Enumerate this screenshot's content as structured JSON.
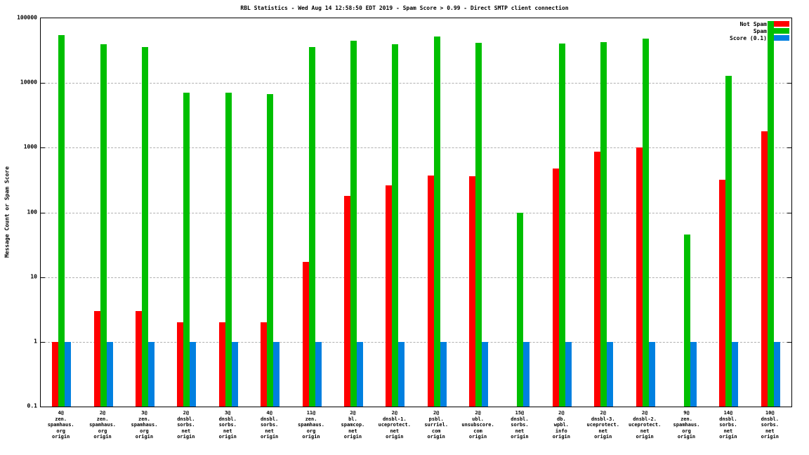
{
  "chart_data": {
    "type": "bar",
    "title": "RBL Statistics - Wed Aug 14 12:58:50 EDT 2019 - Spam Score > 0.99 - Direct SMTP client connection",
    "ylabel": "Message Count or Spam Score",
    "xlabel": "",
    "yscale": "log",
    "ylim": [
      0.1,
      100000
    ],
    "ytick_labels": [
      "100000",
      "10000",
      "1000",
      "100",
      "10",
      "1",
      "0.1"
    ],
    "grid": "dashed horizontal lines at each decade",
    "legend_position": "top-right-inside",
    "categories": [
      [
        "4@",
        "zen.",
        "spamhaus.",
        "org",
        "origin"
      ],
      [
        "2@",
        "zen.",
        "spamhaus.",
        "org",
        "origin"
      ],
      [
        "3@",
        "zen.",
        "spamhaus.",
        "org",
        "origin"
      ],
      [
        "2@",
        "dnsbl.",
        "sorbs.",
        "net",
        "origin"
      ],
      [
        "3@",
        "dnsbl.",
        "sorbs.",
        "net",
        "origin"
      ],
      [
        "4@",
        "dnsbl.",
        "sorbs.",
        "net",
        "origin"
      ],
      [
        "11@",
        "zen.",
        "spamhaus.",
        "org",
        "origin"
      ],
      [
        "2@",
        "bl.",
        "spamcop.",
        "net",
        "origin"
      ],
      [
        "2@",
        "dnsbl-1.",
        "uceprotect.",
        "net",
        "origin"
      ],
      [
        "2@",
        "psbl.",
        "surriel.",
        "com",
        "origin"
      ],
      [
        "2@",
        "ubl.",
        "unsubscore.",
        "com",
        "origin"
      ],
      [
        "15@",
        "dnsbl.",
        "sorbs.",
        "net",
        "origin"
      ],
      [
        "2@",
        "db.",
        "wpbl.",
        "info",
        "origin"
      ],
      [
        "2@",
        "dnsbl-3.",
        "uceprotect.",
        "net",
        "origin"
      ],
      [
        "2@",
        "dnsbl-2.",
        "uceprotect.",
        "net",
        "origin"
      ],
      [
        "9@",
        "zen.",
        "spamhaus.",
        "org",
        "origin"
      ],
      [
        "14@",
        "dnsbl.",
        "sorbs.",
        "net",
        "origin"
      ],
      [
        "10@",
        "dnsbl.",
        "sorbs.",
        "net",
        "origin"
      ]
    ],
    "series": [
      {
        "name": "Not Spam",
        "color": "#ff0000",
        "values": [
          1,
          3,
          3,
          2,
          2,
          2,
          17,
          180,
          260,
          370,
          360,
          null,
          480,
          870,
          1000,
          null,
          320,
          1800
        ]
      },
      {
        "name": "Spam",
        "color": "#00bf00",
        "values": [
          55000,
          40000,
          36000,
          7000,
          7000,
          6800,
          36000,
          45000,
          40000,
          52000,
          42000,
          100,
          41000,
          43000,
          48000,
          45,
          13000,
          90000
        ]
      },
      {
        "name": "Score (0.1)",
        "color": "#0080e0",
        "values": [
          1,
          1,
          1,
          1,
          1,
          1,
          1,
          1,
          1,
          1,
          1,
          1,
          1,
          1,
          1,
          1,
          1,
          1
        ]
      }
    ]
  }
}
